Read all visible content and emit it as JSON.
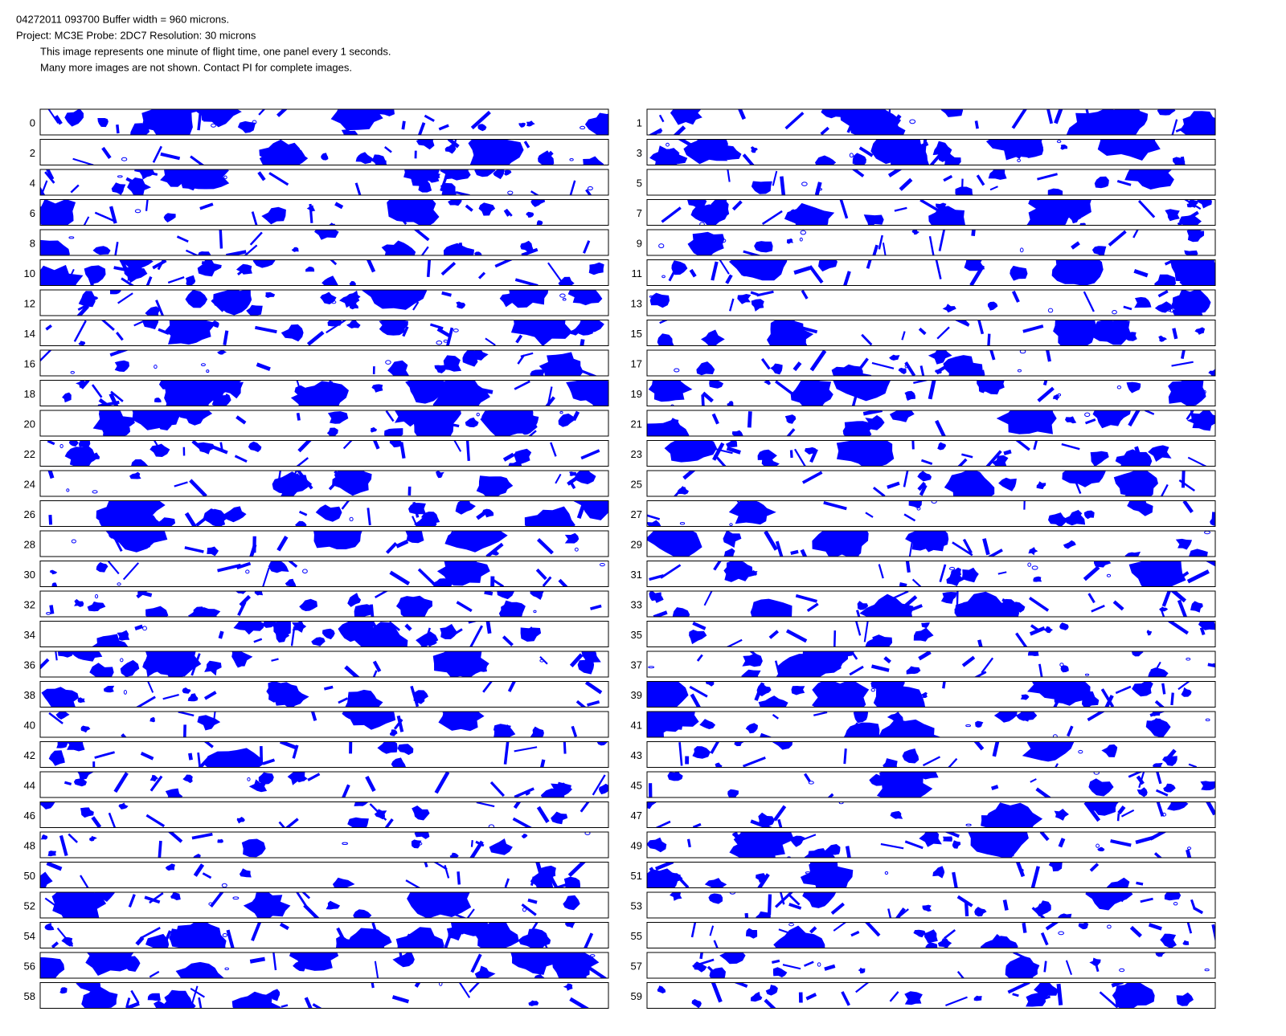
{
  "header": {
    "lines": [
      "04272011 093700  Buffer width = 960 microns.",
      "Project: MC3E   Probe: 2DC7    Resolution: 30 microns",
      "This image represents one minute of flight time, one panel every 1 seconds.",
      "Many more images are not shown.  Contact PI for complete images."
    ]
  },
  "panels": {
    "labels": [
      "0",
      "1",
      "2",
      "3",
      "4",
      "5",
      "6",
      "7",
      "8",
      "9",
      "10",
      "11",
      "12",
      "13",
      "14",
      "15",
      "16",
      "17",
      "18",
      "19",
      "20",
      "21",
      "22",
      "23",
      "24",
      "25",
      "26",
      "27",
      "28",
      "29",
      "30",
      "31",
      "32",
      "33",
      "34",
      "35",
      "36",
      "37",
      "38",
      "39",
      "40",
      "41",
      "42",
      "43",
      "44",
      "45",
      "46",
      "47",
      "48",
      "49",
      "50",
      "51",
      "52",
      "53",
      "54",
      "55",
      "56",
      "57",
      "58",
      "59"
    ]
  }
}
